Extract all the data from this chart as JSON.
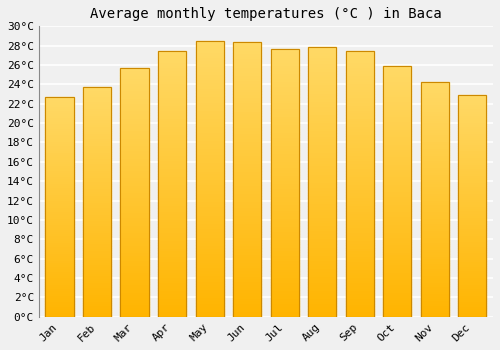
{
  "title": "Average monthly temperatures (°C ) in Baca",
  "months": [
    "Jan",
    "Feb",
    "Mar",
    "Apr",
    "May",
    "Jun",
    "Jul",
    "Aug",
    "Sep",
    "Oct",
    "Nov",
    "Dec"
  ],
  "values": [
    22.7,
    23.7,
    25.7,
    27.4,
    28.5,
    28.4,
    27.7,
    27.9,
    27.4,
    25.9,
    24.2,
    22.9
  ],
  "bar_color_bottom": "#FFB400",
  "bar_color_top": "#FFD966",
  "bar_edge_color": "#CC8800",
  "ylim": [
    0,
    30
  ],
  "yticks": [
    0,
    2,
    4,
    6,
    8,
    10,
    12,
    14,
    16,
    18,
    20,
    22,
    24,
    26,
    28,
    30
  ],
  "ytick_labels": [
    "0°C",
    "2°C",
    "4°C",
    "6°C",
    "8°C",
    "10°C",
    "12°C",
    "14°C",
    "16°C",
    "18°C",
    "20°C",
    "22°C",
    "24°C",
    "26°C",
    "28°C",
    "30°C"
  ],
  "background_color": "#f0f0f0",
  "plot_bg_color": "#f0f0f0",
  "grid_color": "#ffffff",
  "title_fontsize": 10,
  "tick_fontsize": 8,
  "font_family": "monospace",
  "bar_width": 0.75
}
